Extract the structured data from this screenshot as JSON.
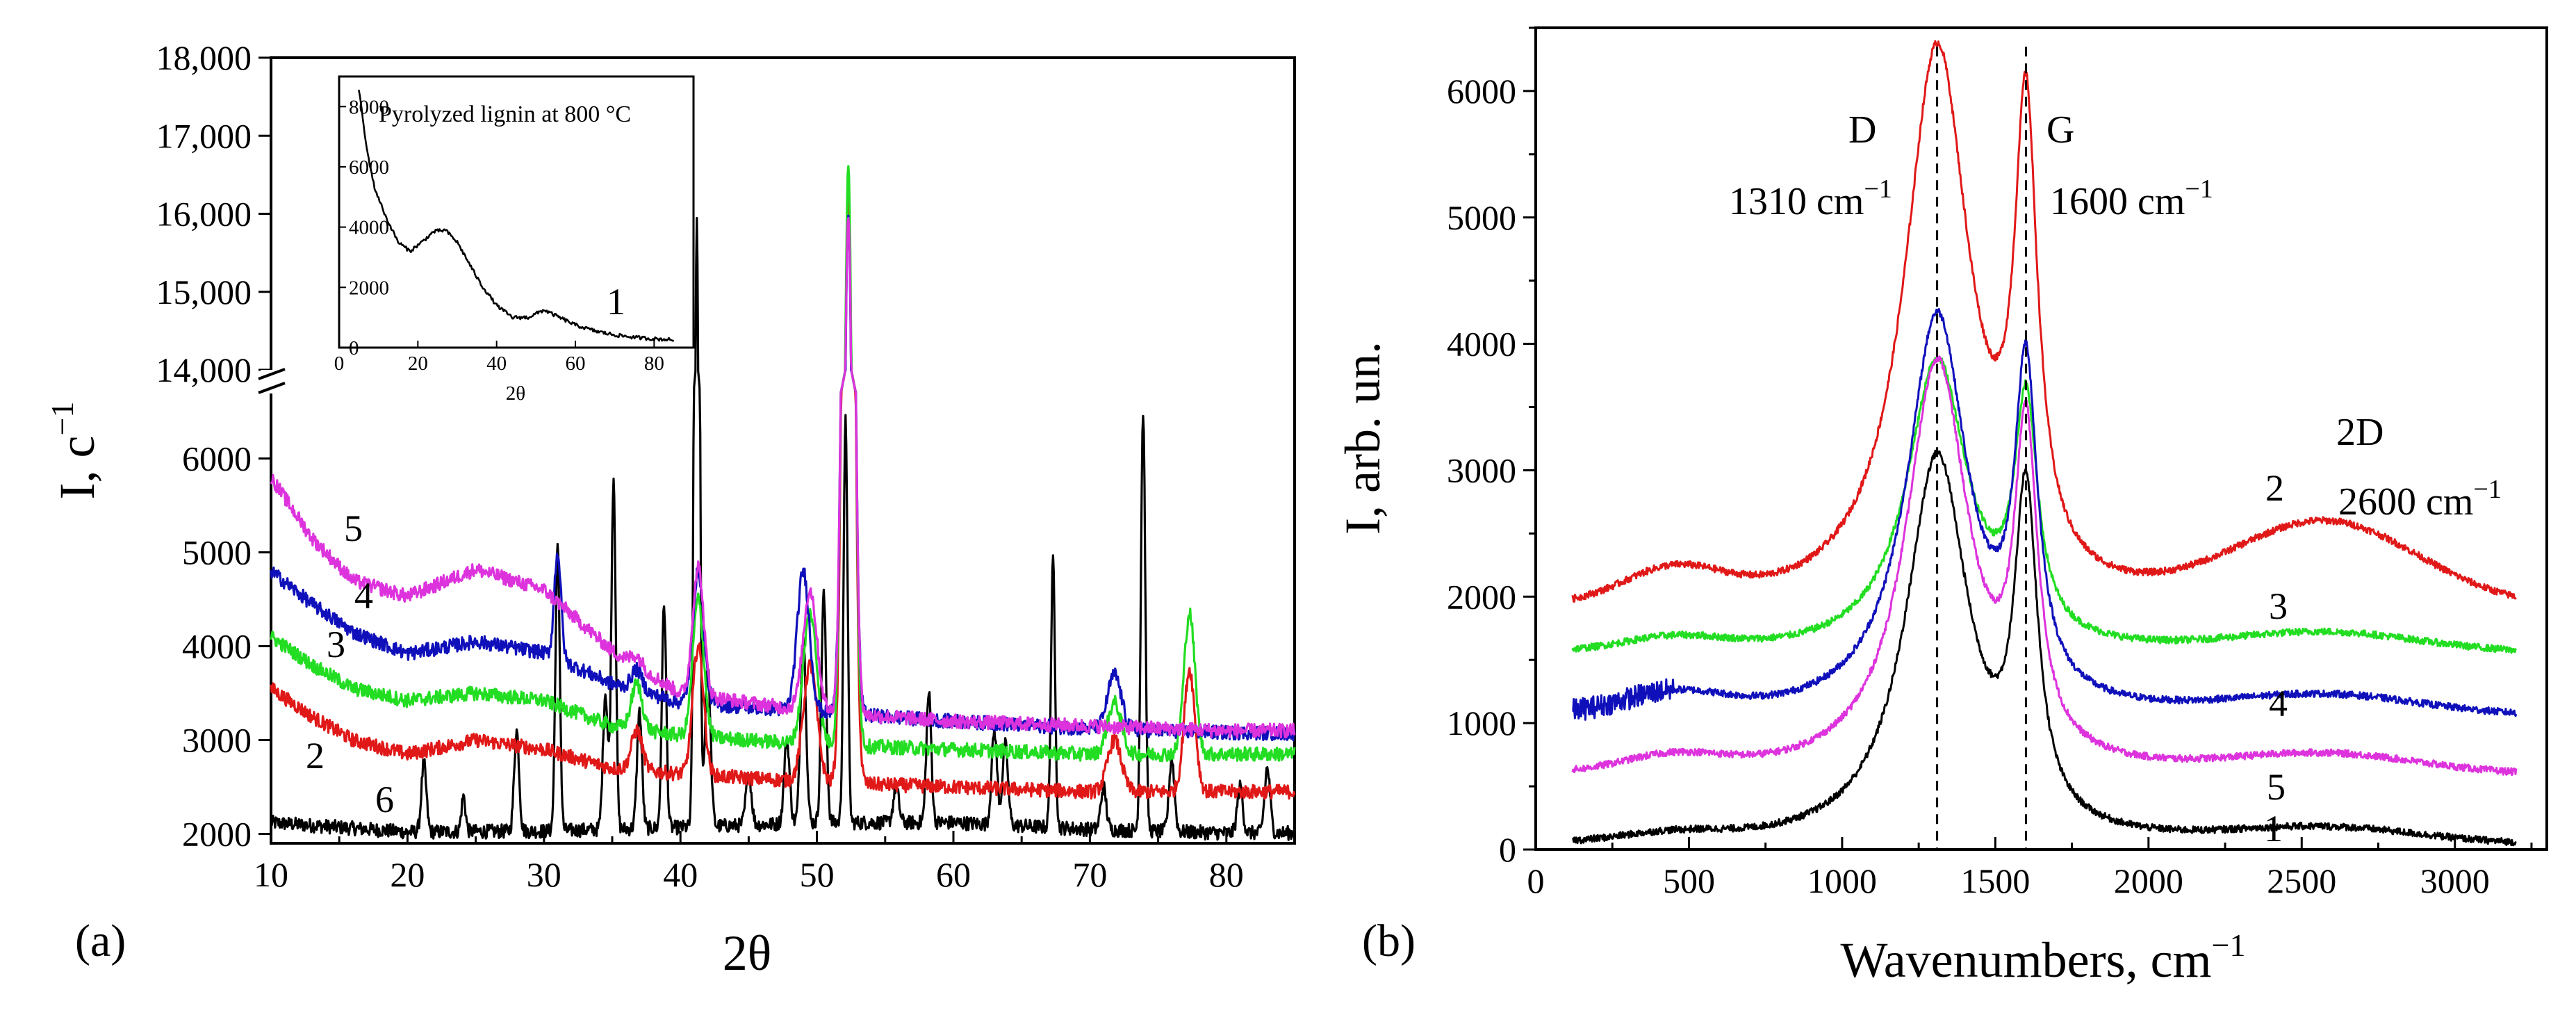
{
  "chart_data": [
    {
      "type": "line",
      "panel_label": "(a)",
      "xlabel": "2θ",
      "ylabel": "I, c",
      "ylabel_superscript": "−1",
      "xlim": [
        10,
        85
      ],
      "ylim_lower": [
        1900,
        6700
      ],
      "ylim_upper": [
        14000,
        18000
      ],
      "axis_break": true,
      "x_ticks": [
        "10",
        "20",
        "30",
        "40",
        "50",
        "60",
        "70",
        "80"
      ],
      "y_ticks_lower": [
        "2000",
        "3000",
        "4000",
        "5000",
        "6000"
      ],
      "y_ticks_upper": [
        "14,000",
        "15,000",
        "16,000",
        "17,000",
        "18,000"
      ],
      "series": [
        {
          "name": "6",
          "color": "#000000",
          "baseline": [
            [
              10,
              2120
            ],
            [
              20,
              2020
            ],
            [
              30,
              2030
            ],
            [
              40,
              2070
            ],
            [
              50,
              2120
            ],
            [
              60,
              2120
            ],
            [
              70,
              2050
            ],
            [
              80,
              2010
            ],
            [
              85,
              2010
            ]
          ],
          "peaks": [
            [
              21.2,
              2750,
              0.18
            ],
            [
              24.1,
              2400,
              0.15
            ],
            [
              28.0,
              3100,
              0.18
            ],
            [
              31.0,
              5050,
              0.16
            ],
            [
              34.5,
              3500,
              0.18
            ],
            [
              35.1,
              5800,
              0.16
            ],
            [
              37.0,
              3300,
              0.18
            ],
            [
              38.8,
              4450,
              0.16
            ],
            [
              41.2,
              16000,
              0.16
            ],
            [
              42.0,
              3800,
              0.2
            ],
            [
              45.0,
              2650,
              0.2
            ],
            [
              47.8,
              3000,
              0.2
            ],
            [
              49.0,
              4100,
              0.2
            ],
            [
              50.5,
              4550,
              0.18
            ],
            [
              52.1,
              6400,
              0.15
            ],
            [
              55.8,
              2500,
              0.2
            ],
            [
              58.2,
              3500,
              0.18
            ],
            [
              63.0,
              3100,
              0.2
            ],
            [
              63.8,
              2950,
              0.2
            ],
            [
              67.3,
              4900,
              0.15
            ],
            [
              71.0,
              2500,
              0.2
            ],
            [
              73.9,
              6500,
              0.16
            ],
            [
              76.0,
              2800,
              0.2
            ],
            [
              81.0,
              2500,
              0.2
            ],
            [
              83.0,
              2700,
              0.2
            ]
          ]
        },
        {
          "name": "2",
          "color": "#e01818",
          "baseline": [
            [
              10,
              3550
            ],
            [
              13,
              3250
            ],
            [
              16,
              3000
            ],
            [
              20,
              2850
            ],
            [
              25,
              3000
            ],
            [
              30,
              2900
            ],
            [
              35,
              2700
            ],
            [
              40,
              2640
            ],
            [
              50,
              2550
            ],
            [
              60,
              2500
            ],
            [
              70,
              2450
            ],
            [
              80,
              2450
            ],
            [
              85,
              2450
            ]
          ],
          "peaks": [
            [
              36.8,
              3100,
              0.4
            ],
            [
              41.3,
              4000,
              0.4
            ],
            [
              49.5,
              3800,
              0.5
            ],
            [
              52.3,
              16200,
              0.35
            ],
            [
              71.8,
              3000,
              0.5
            ],
            [
              77.3,
              3750,
              0.4
            ]
          ]
        },
        {
          "name": "3",
          "color": "#22dd22",
          "baseline": [
            [
              10,
              4100
            ],
            [
              13,
              3800
            ],
            [
              16,
              3550
            ],
            [
              20,
              3420
            ],
            [
              25,
              3500
            ],
            [
              30,
              3420
            ],
            [
              35,
              3150
            ],
            [
              40,
              3050
            ],
            [
              50,
              2950
            ],
            [
              60,
              2900
            ],
            [
              70,
              2850
            ],
            [
              80,
              2850
            ],
            [
              85,
              2850
            ]
          ],
          "peaks": [
            [
              36.8,
              3600,
              0.4
            ],
            [
              41.3,
              4500,
              0.4
            ],
            [
              49.5,
              4350,
              0.5
            ],
            [
              52.3,
              16600,
              0.35
            ],
            [
              71.8,
              3400,
              0.5
            ],
            [
              77.3,
              4350,
              0.4
            ]
          ]
        },
        {
          "name": "4",
          "color": "#1010bb",
          "baseline": [
            [
              10,
              4800
            ],
            [
              13,
              4450
            ],
            [
              16,
              4150
            ],
            [
              20,
              3920
            ],
            [
              25,
              4050
            ],
            [
              30,
              3930
            ],
            [
              35,
              3600
            ],
            [
              40,
              3400
            ],
            [
              50,
              3300
            ],
            [
              60,
              3200
            ],
            [
              70,
              3120
            ],
            [
              80,
              3080
            ],
            [
              85,
              3070
            ]
          ],
          "peaks": [
            [
              31.0,
              5000,
              0.25
            ],
            [
              36.8,
              3750,
              0.4
            ],
            [
              41.3,
              4800,
              0.4
            ],
            [
              49.0,
              4800,
              0.45
            ],
            [
              52.3,
              15900,
              0.35
            ],
            [
              71.8,
              3700,
              0.5
            ]
          ]
        },
        {
          "name": "5",
          "color": "#dd33dd",
          "baseline": [
            [
              10,
              5800
            ],
            [
              13,
              5150
            ],
            [
              16,
              4700
            ],
            [
              20,
              4530
            ],
            [
              25,
              4820
            ],
            [
              30,
              4600
            ],
            [
              35,
              3950
            ],
            [
              40,
              3500
            ],
            [
              50,
              3300
            ],
            [
              60,
              3200
            ],
            [
              70,
              3150
            ],
            [
              80,
              3100
            ],
            [
              85,
              3100
            ]
          ],
          "peaks": [
            [
              36.8,
              3900,
              0.4
            ],
            [
              41.3,
              4850,
              0.4
            ],
            [
              49.5,
              4600,
              0.5
            ],
            [
              52.3,
              16000,
              0.35
            ]
          ]
        }
      ],
      "curve_labels": [
        "6",
        "2",
        "3",
        "4",
        "5"
      ],
      "inset": {
        "title": "Pyrolyzed lignin at 800 °C",
        "xlabel": "2θ",
        "xlim": [
          0,
          90
        ],
        "ylim": [
          0,
          9000
        ],
        "x_ticks": [
          "0",
          "20",
          "40",
          "60",
          "80"
        ],
        "y_ticks": [
          "0",
          "2000",
          "4000",
          "6000",
          "8000"
        ],
        "series_label": "1",
        "x": [
          5,
          7,
          9,
          12,
          15,
          18,
          21,
          24,
          27,
          30,
          33,
          36,
          40,
          44,
          48,
          52,
          56,
          60,
          65,
          70,
          75,
          80,
          85
        ],
        "y": [
          8600,
          6600,
          5300,
          4300,
          3500,
          3200,
          3500,
          3850,
          3900,
          3500,
          2800,
          2100,
          1400,
          1000,
          1000,
          1250,
          1000,
          750,
          550,
          420,
          340,
          290,
          260
        ]
      }
    },
    {
      "type": "line",
      "panel_label": "(b)",
      "xlabel": "Wavenumbers, cm",
      "xlabel_superscript": "−1",
      "ylabel": "I, arb. un.",
      "xlim": [
        0,
        3300
      ],
      "ylim": [
        0,
        6500
      ],
      "x_ticks": [
        "0",
        "500",
        "1000",
        "1500",
        "2000",
        "2500",
        "3000"
      ],
      "y_ticks": [
        "0",
        "1000",
        "2000",
        "3000",
        "4000",
        "5000",
        "6000"
      ],
      "peak_positions": [
        1310,
        1600
      ],
      "annotations": [
        {
          "name": "D",
          "value": "1310 cm",
          "sup": "−1"
        },
        {
          "name": "G",
          "value": "1600 cm",
          "sup": "−1"
        },
        {
          "name": "2D",
          "value": "2600 cm",
          "sup": "−1"
        }
      ],
      "series": [
        {
          "name": "2",
          "color": "#e01818",
          "baseline": 1900,
          "D": 4400,
          "G": 3500,
          "Dw": 130,
          "Gw": 45,
          "hump": 650,
          "low": 250
        },
        {
          "name": "3",
          "color": "#22dd22",
          "baseline": 1550,
          "D": 2300,
          "G": 1800,
          "Dw": 120,
          "Gw": 45,
          "hump": 150,
          "low": 100
        },
        {
          "name": "4",
          "color": "#1010bb",
          "baseline": 1050,
          "D": 3150,
          "G": 2500,
          "Dw": 120,
          "Gw": 45,
          "hump": 150,
          "low": 150
        },
        {
          "name": "5",
          "color": "#dd33dd",
          "baseline": 580,
          "D": 3250,
          "G": 2450,
          "Dw": 125,
          "Gw": 45,
          "hump": 150,
          "low": 120
        },
        {
          "name": "1",
          "color": "#000000",
          "baseline": 30,
          "D": 3050,
          "G": 2500,
          "Dw": 125,
          "Gw": 45,
          "hump": 120,
          "low": 60
        }
      ],
      "curve_labels": [
        "2",
        "3",
        "4",
        "5",
        "1"
      ]
    }
  ]
}
